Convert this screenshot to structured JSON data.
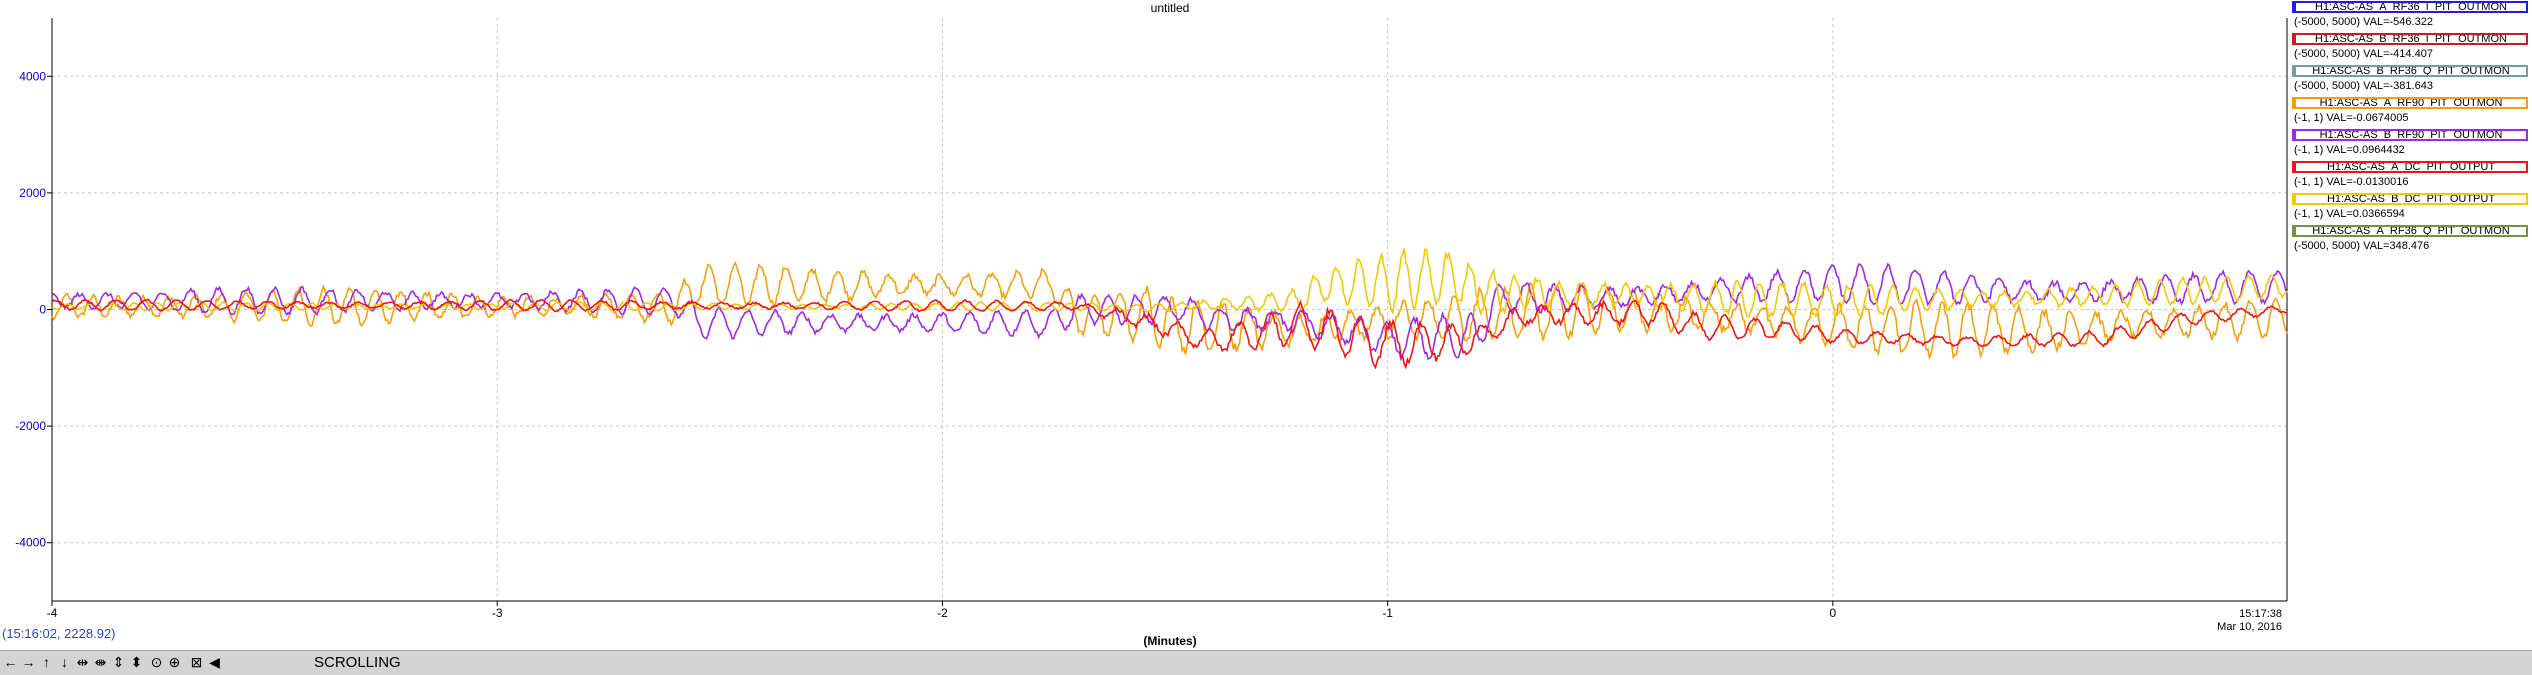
{
  "chart_data": {
    "type": "line",
    "title": "untitled",
    "xlabel": "(Minutes)",
    "ylabel": "",
    "xlim": [
      -4,
      1.02
    ],
    "ylim": [
      -5000,
      5000
    ],
    "x_ticks": [
      -4,
      -3,
      -2,
      -1,
      0
    ],
    "x_tick_labels": [
      "-4",
      "-3",
      "-2",
      "-1",
      "0"
    ],
    "y_ticks": [
      -4000,
      -2000,
      0,
      2000,
      4000
    ],
    "y_tick_labels": [
      "-4000",
      "-2000",
      "0",
      "2000",
      "4000"
    ],
    "end_time_label": [
      "15:17:38",
      "Mar 10, 2016"
    ],
    "grid": true,
    "legend_position": "right",
    "series": [
      {
        "name": "H1:ASC-AS_A_RF36_I_PIT_OUTMON",
        "range": "(-5000, 5000)",
        "value": "VAL=-546.322",
        "color": "#1e1ee6",
        "drawn": false
      },
      {
        "name": "H1:ASC-AS_B_RF36_I_PIT_OUTMON",
        "range": "(-5000, 5000)",
        "value": "VAL=-414.407",
        "color": "#c81e1e",
        "drawn": false
      },
      {
        "name": "H1:ASC-AS_B_RF36_Q_PIT_OUTMON",
        "range": "(-5000, 5000)",
        "value": "VAL=-381.643",
        "color": "#6fa0a8",
        "drawn": false
      },
      {
        "name": "H1:ASC-AS_A_RF90_PIT_OUTMON",
        "range": "(-1, 1)",
        "value": "VAL=-0.0674005",
        "color": "#f5a00a",
        "drawn": true,
        "baseline": [
          [
            -4,
            50
          ],
          [
            -2.6,
            50
          ],
          [
            -2.55,
            420
          ],
          [
            -1.75,
            420
          ],
          [
            -1.7,
            -100
          ],
          [
            -1.55,
            -80
          ],
          [
            -1.5,
            -250
          ],
          [
            -1.2,
            -350
          ],
          [
            -1.0,
            -200
          ],
          [
            -0.8,
            -100
          ],
          [
            -0.5,
            0
          ],
          [
            -0.2,
            -150
          ],
          [
            0,
            -300
          ],
          [
            0.5,
            -350
          ],
          [
            0.7,
            -250
          ],
          [
            1.02,
            -150
          ]
        ],
        "amplitude": [
          [
            -4,
            300
          ],
          [
            -2.6,
            300
          ],
          [
            -2.55,
            350
          ],
          [
            -1.75,
            300
          ],
          [
            -1.5,
            500
          ],
          [
            -1.0,
            450
          ],
          [
            -0.5,
            450
          ],
          [
            0,
            450
          ],
          [
            0.6,
            450
          ],
          [
            1.02,
            350
          ]
        ]
      },
      {
        "name": "H1:ASC-AS_B_RF90_PIT_OUTMON",
        "range": "(-1, 1)",
        "value": "VAL=0.0964432",
        "color": "#a028e6",
        "drawn": true,
        "baseline": [
          [
            -4,
            150
          ],
          [
            -2.6,
            150
          ],
          [
            -2.55,
            -230
          ],
          [
            -1.75,
            -230
          ],
          [
            -1.7,
            0
          ],
          [
            -1.45,
            0
          ],
          [
            -1.4,
            -150
          ],
          [
            -1.2,
            -200
          ],
          [
            -1.0,
            -500
          ],
          [
            -0.8,
            -450
          ],
          [
            -0.75,
            200
          ],
          [
            -0.5,
            200
          ],
          [
            0,
            450
          ],
          [
            0.5,
            300
          ],
          [
            1.02,
            400
          ]
        ],
        "amplitude": [
          [
            -4,
            220
          ],
          [
            -2.6,
            220
          ],
          [
            -2.55,
            270
          ],
          [
            -1.75,
            220
          ],
          [
            -1.4,
            300
          ],
          [
            -1.2,
            350
          ],
          [
            -0.8,
            350
          ],
          [
            -0.75,
            250
          ],
          [
            0,
            320
          ],
          [
            0.6,
            300
          ],
          [
            1.02,
            250
          ]
        ]
      },
      {
        "name": "H1:ASC-AS_A_DC_PIT_OUTPUT",
        "range": "(-1, 1)",
        "value": "VAL=-0.0130016",
        "color": "#f01414",
        "drawn": true,
        "baseline": [
          [
            -4,
            80
          ],
          [
            -1.7,
            60
          ],
          [
            -1.55,
            -200
          ],
          [
            -1.4,
            -550
          ],
          [
            -1.2,
            -250
          ],
          [
            -1.0,
            -600
          ],
          [
            -0.8,
            -500
          ],
          [
            -0.7,
            -100
          ],
          [
            -0.4,
            -50
          ],
          [
            -0.3,
            -300
          ],
          [
            -0.1,
            -350
          ],
          [
            0,
            -450
          ],
          [
            0.3,
            -550
          ],
          [
            0.6,
            -500
          ],
          [
            0.8,
            -150
          ],
          [
            1.02,
            0
          ]
        ],
        "amplitude": [
          [
            -4,
            90
          ],
          [
            -1.7,
            90
          ],
          [
            -1.55,
            250
          ],
          [
            -1.0,
            400
          ],
          [
            -0.7,
            300
          ],
          [
            -0.4,
            250
          ],
          [
            -0.1,
            150
          ],
          [
            0.6,
            130
          ],
          [
            1.02,
            100
          ]
        ]
      },
      {
        "name": "H1:ASC-AS_B_DC_PIT_OUTPUT",
        "range": "(-1, 1)",
        "value": "VAL=0.0366594",
        "color": "#f5c800",
        "drawn": true,
        "baseline": [
          [
            -4,
            50
          ],
          [
            -1.75,
            50
          ],
          [
            -1.7,
            50
          ],
          [
            -1.55,
            20
          ],
          [
            -1.2,
            150
          ],
          [
            -1.15,
            400
          ],
          [
            -0.85,
            550
          ],
          [
            -0.8,
            350
          ],
          [
            -0.75,
            280
          ],
          [
            -0.5,
            250
          ],
          [
            0,
            150
          ],
          [
            0.5,
            200
          ],
          [
            1.02,
            400
          ]
        ],
        "amplitude": [
          [
            -4,
            70
          ],
          [
            -1.75,
            70
          ],
          [
            -1.55,
            80
          ],
          [
            -1.2,
            250
          ],
          [
            -1.0,
            500
          ],
          [
            -0.8,
            420
          ],
          [
            -0.5,
            350
          ],
          [
            0,
            280
          ],
          [
            0.6,
            220
          ],
          [
            1.02,
            200
          ]
        ]
      },
      {
        "name": "H1:ASC-AS_A_RF36_Q_PIT_OUTMON",
        "range": "(-5000, 5000)",
        "value": "VAL=348.476",
        "color": "#6e963c",
        "drawn": false
      }
    ]
  },
  "status": {
    "cursor_readout": "(15:16:02, 2228.92)",
    "mode_label": "SCROLLING"
  },
  "toolbar": {
    "buttons": [
      {
        "glyph": "←",
        "icon": "scroll-left-icon"
      },
      {
        "glyph": "→",
        "icon": "scroll-right-icon"
      },
      {
        "glyph": "↑",
        "icon": "scroll-up-icon"
      },
      {
        "glyph": "↓",
        "icon": "scroll-down-icon"
      },
      {
        "glyph": "⇹",
        "icon": "expand-horizontal-icon"
      },
      {
        "glyph": "⇼",
        "icon": "compress-horizontal-icon"
      },
      {
        "glyph": "⇕",
        "icon": "expand-vertical-icon"
      },
      {
        "glyph": "⬍",
        "icon": "compress-vertical-icon"
      },
      {
        "glyph": "⊙",
        "icon": "zoom-out-icon"
      },
      {
        "glyph": "⊕",
        "icon": "zoom-in-icon"
      },
      {
        "glyph": "⊠",
        "icon": "autoscale-icon"
      },
      {
        "glyph": "◀",
        "icon": "pause-scroll-icon"
      }
    ]
  }
}
